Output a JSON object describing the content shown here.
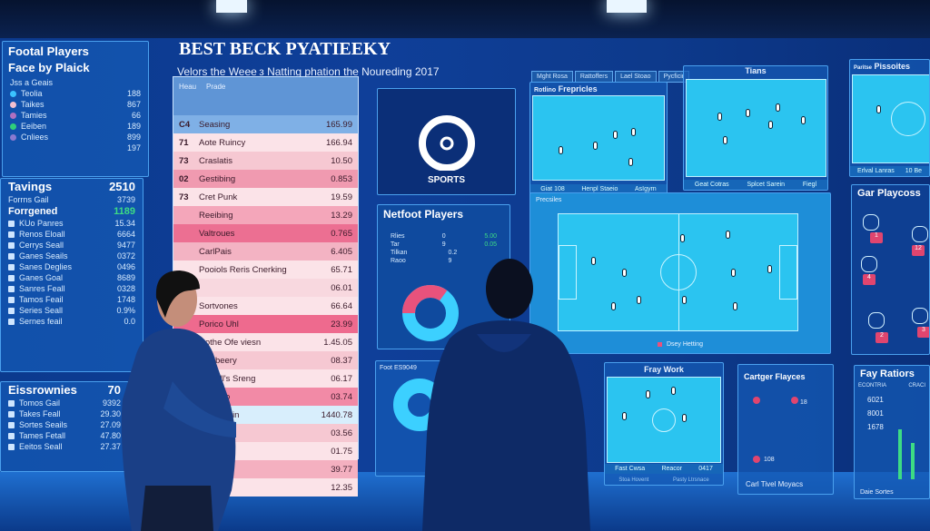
{
  "colors": {
    "wall": "#0f3f99",
    "field": "#2bc4f0",
    "pink": "#e8527c",
    "accent_green": "#3ddc84"
  },
  "left_panel_1": {
    "title_line1": "Footal Players",
    "title_line2": "Face by Plaick",
    "subtitle": "Jss a Geais",
    "rows": [
      {
        "label": "Teolia",
        "value": "188"
      },
      {
        "label": "Taikes",
        "value": "867"
      },
      {
        "label": "Tamies",
        "value": "66"
      },
      {
        "label": "Eeiben",
        "value": "189"
      },
      {
        "label": "Cnliees",
        "value": "899"
      },
      {
        "label": "",
        "value": "197"
      }
    ]
  },
  "left_panel_2": {
    "title": "Tavings",
    "title_value": "2510",
    "rows": [
      {
        "label": "Forrns Gail",
        "value": "3739"
      }
    ],
    "subheader": "Forrgened",
    "subheader_value": "1189",
    "rows2": [
      {
        "label": "KUo Panres",
        "value": "15.34"
      },
      {
        "label": "Renos Eloall",
        "value": "6664"
      },
      {
        "label": "Cerrys Seall",
        "value": "9477"
      },
      {
        "label": "Ganes Seails",
        "value": "0372"
      },
      {
        "label": "Sanes Deglies",
        "value": "0496"
      },
      {
        "label": "Ganes Goal",
        "value": "8689"
      },
      {
        "label": "Sanres Feall",
        "value": "0328"
      },
      {
        "label": "Tamos Feail",
        "value": "1748"
      },
      {
        "label": "Series Seall",
        "value": "0.9%"
      },
      {
        "label": "Sernes feail",
        "value": "0.0"
      }
    ]
  },
  "left_panel_3": {
    "title": "Eissrownies",
    "title_value": "70",
    "rows": [
      {
        "label": "Tomos Gail",
        "value": "9392"
      },
      {
        "label": "Takes Feall",
        "value": "29.30"
      },
      {
        "label": "Sortes Seails",
        "value": "27.09"
      },
      {
        "label": "Tames Fetall",
        "value": "47.80"
      },
      {
        "label": "Eeitos Seall",
        "value": "27.37"
      }
    ]
  },
  "header": {
    "title": "BEST BECK PYATIEEKY",
    "subtitle": "Velors the Weee з Natting phation the Noureding 2017"
  },
  "table": {
    "col1": "Heau",
    "col2": "Prade",
    "rows": [
      {
        "n": "C4",
        "name": "Seasing",
        "value": "165.99"
      },
      {
        "n": "71",
        "name": "Aote Ruincy",
        "value": "166.94"
      },
      {
        "n": "73",
        "name": "Craslatis",
        "value": "10.50"
      },
      {
        "n": "02",
        "name": "Gestibing",
        "value": "0.853"
      },
      {
        "n": "73",
        "name": "Cret Punk",
        "value": "19.59"
      },
      {
        "n": "",
        "name": "Reeibing",
        "value": "13.29"
      },
      {
        "n": "",
        "name": "Valtroues",
        "value": "0.765"
      },
      {
        "n": "",
        "name": "CarlPais",
        "value": "6.405"
      },
      {
        "n": "",
        "name": "Pooiols Reris Cnerking",
        "value": "65.71"
      },
      {
        "n": "",
        "name": "",
        "value": "06.01"
      },
      {
        "n": "",
        "name": "Sortvones",
        "value": "66.64"
      },
      {
        "n": "",
        "name": "Porico Uhl",
        "value": "23.99"
      },
      {
        "n": "",
        "name": "Rothe Ofe viesn",
        "value": "1.45.05"
      },
      {
        "n": "",
        "name": "Acsibeery",
        "value": "08.37"
      },
      {
        "n": "",
        "name": "Vietioll's Sreng",
        "value": "06.17"
      },
      {
        "n": "",
        "name": "Paik Mo",
        "value": "03.74"
      },
      {
        "n": "",
        "name": "Rov Duain",
        "value": "1440.78"
      },
      {
        "n": "",
        "name": "Melret",
        "value": "03.56"
      },
      {
        "n": "",
        "name": "",
        "value": "01.75"
      },
      {
        "n": "",
        "name": "",
        "value": "39.77"
      },
      {
        "n": "",
        "name": "ete Ioh",
        "value": "12.35"
      }
    ]
  },
  "sports_logo": {
    "label": "SPORTS"
  },
  "netfoot": {
    "title": "Netfoot Players",
    "rows": [
      {
        "label": "Rlies",
        "a": "0",
        "b": "5.00"
      },
      {
        "label": "Tar",
        "a": "9",
        "b": "0.05"
      },
      {
        "label": "Tilkan",
        "a": "0.2",
        "b": ""
      },
      {
        "label": "Raoo",
        "a": "9",
        "b": ""
      }
    ],
    "donut_pink": 0.35
  },
  "tabs": [
    "Mght Rosa",
    "Rattoffers",
    "Lael Stoao",
    "Pycficir"
  ],
  "frepricles": {
    "title_prefix": "Rotlino",
    "title": "Frepricles",
    "footer": [
      "Giat 108",
      "Henpl Staeio",
      "AsIgyrn"
    ]
  },
  "tians": {
    "title": "Tians",
    "footer": [
      "Geat Cotras",
      "Splcet Sarein",
      "Fiegl"
    ]
  },
  "big_field": {
    "label": "Precsiles",
    "legend": "Dsey Hetting"
  },
  "piseites": {
    "title_prefix": "Paritse",
    "title": "Pissoites",
    "footer": [
      "Erlval Lanras",
      "10 Be"
    ]
  },
  "gar_playcoss": {
    "title": "Gar Playcoss",
    "badges": [
      "1",
      "12",
      "4",
      "3",
      "2"
    ]
  },
  "fay_ratiors": {
    "title": "Fay Ratiors",
    "headers": [
      "ECONTRIA",
      "CRACI"
    ],
    "values": [
      "6021",
      "8001",
      "1678"
    ],
    "footer": "Daie Sortes"
  },
  "foot_es": {
    "title": "Foot ES9049"
  },
  "fray_work": {
    "title": "Fray Work",
    "footer": [
      "Fast Cwsa",
      "Reacor",
      "0417"
    ],
    "legend": [
      "Stoa Hovent",
      "Pasty Ltrsnace"
    ]
  },
  "cartger": {
    "title": "Cartger Flayces",
    "footer": "Carl Tivel Moyacs",
    "labels": [
      "18",
      "108"
    ]
  }
}
